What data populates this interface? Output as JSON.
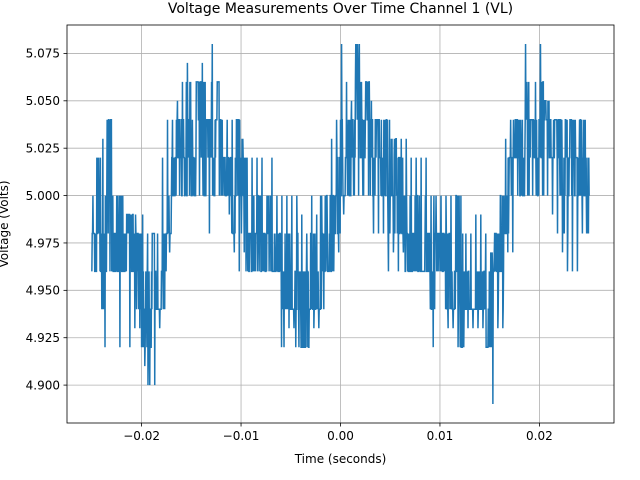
{
  "chart_data": {
    "type": "line",
    "title": "Voltage Measurements Over Time Channel 1 (VL)",
    "xlabel": "Time (seconds)",
    "ylabel": "Voltage (Volts)",
    "xlim": [
      -0.0275,
      0.0275
    ],
    "ylim": [
      4.88,
      5.09
    ],
    "grid": true,
    "x_ticks": [
      -0.02,
      -0.01,
      0.0,
      0.01,
      0.02
    ],
    "x_tick_labels": [
      "−0.02",
      "−0.01",
      "0.00",
      "0.01",
      "0.02"
    ],
    "y_ticks": [
      4.9,
      4.925,
      4.95,
      4.975,
      5.0,
      5.025,
      5.05,
      5.075
    ],
    "y_tick_labels": [
      "4.900",
      "4.925",
      "4.950",
      "4.975",
      "5.000",
      "5.025",
      "5.050",
      "5.075"
    ],
    "series": [
      {
        "color": "#1f77b4",
        "x": [
          -0.025,
          -0.0245,
          -0.024,
          -0.0235,
          -0.023,
          -0.0225,
          -0.022,
          -0.0215,
          -0.021,
          -0.0205,
          -0.02,
          -0.0195,
          -0.019,
          -0.0185,
          -0.018,
          -0.0175,
          -0.017,
          -0.0165,
          -0.016,
          -0.0155,
          -0.015,
          -0.0145,
          -0.014,
          -0.0135,
          -0.013,
          -0.0125,
          -0.012,
          -0.0115,
          -0.011,
          -0.0105,
          -0.01,
          -0.0095,
          -0.009,
          -0.0085,
          -0.008,
          -0.0075,
          -0.007,
          -0.0065,
          -0.006,
          -0.0055,
          -0.005,
          -0.0045,
          -0.004,
          -0.0035,
          -0.003,
          -0.0025,
          -0.002,
          -0.0015,
          -0.001,
          -0.0005,
          0.0,
          0.0005,
          0.001,
          0.0015,
          0.002,
          0.0025,
          0.003,
          0.0035,
          0.004,
          0.0045,
          0.005,
          0.0055,
          0.006,
          0.0065,
          0.007,
          0.0075,
          0.008,
          0.0085,
          0.009,
          0.0095,
          0.01,
          0.0105,
          0.011,
          0.0115,
          0.012,
          0.0125,
          0.013,
          0.0135,
          0.014,
          0.0145,
          0.015,
          0.0155,
          0.016,
          0.0165,
          0.017,
          0.0175,
          0.018,
          0.0185,
          0.019,
          0.0195,
          0.02,
          0.0205,
          0.021,
          0.0215,
          0.022,
          0.0225,
          0.023,
          0.0235,
          0.024,
          0.0245,
          0.025
        ],
        "y": [
          4.97,
          4.99,
          4.96,
          5.02,
          4.97,
          4.98,
          4.96,
          5.0,
          4.97,
          4.96,
          4.95,
          4.93,
          4.96,
          4.92,
          4.97,
          4.98,
          5.01,
          5.03,
          5.02,
          5.04,
          5.01,
          5.06,
          5.03,
          5.04,
          5.02,
          5.05,
          5.01,
          5.02,
          5.0,
          5.03,
          5.01,
          4.98,
          4.97,
          4.99,
          4.96,
          4.98,
          4.96,
          4.97,
          4.95,
          4.96,
          4.94,
          4.95,
          4.93,
          4.94,
          4.96,
          4.95,
          4.97,
          4.98,
          4.99,
          5.0,
          5.0,
          5.02,
          5.03,
          5.05,
          5.03,
          5.04,
          5.02,
          5.03,
          5.01,
          5.02,
          5.01,
          5.0,
          4.99,
          4.98,
          4.97,
          4.98,
          4.96,
          4.97,
          4.96,
          4.97,
          4.97,
          4.96,
          4.95,
          4.96,
          4.94,
          4.95,
          4.93,
          4.95,
          4.94,
          4.93,
          4.95,
          4.96,
          4.97,
          4.99,
          5.01,
          5.03,
          5.02,
          5.03,
          5.04,
          5.01,
          5.03,
          5.05,
          5.02,
          5.03,
          5.01,
          5.02,
          5.03,
          5.01,
          5.02,
          5.0,
          5.0
        ],
        "envelope": {
          "x": [
            -0.025,
            -0.0245,
            -0.024,
            -0.0235,
            -0.023,
            -0.0225,
            -0.022,
            -0.0215,
            -0.021,
            -0.0205,
            -0.02,
            -0.0195,
            -0.019,
            -0.0185,
            -0.018,
            -0.0175,
            -0.017,
            -0.0165,
            -0.016,
            -0.0155,
            -0.015,
            -0.0145,
            -0.014,
            -0.0135,
            -0.013,
            -0.0125,
            -0.012,
            -0.0115,
            -0.011,
            -0.0105,
            -0.01,
            -0.0095,
            -0.009,
            -0.0085,
            -0.008,
            -0.0075,
            -0.007,
            -0.0065,
            -0.006,
            -0.0055,
            -0.005,
            -0.0045,
            -0.004,
            -0.0035,
            -0.003,
            -0.0025,
            -0.002,
            -0.0015,
            -0.001,
            -0.0005,
            0.0,
            0.0005,
            0.001,
            0.0015,
            0.002,
            0.0025,
            0.003,
            0.0035,
            0.004,
            0.0045,
            0.005,
            0.0055,
            0.006,
            0.0065,
            0.007,
            0.0075,
            0.008,
            0.0085,
            0.009,
            0.0095,
            0.01,
            0.0105,
            0.011,
            0.0115,
            0.012,
            0.0125,
            0.013,
            0.0135,
            0.014,
            0.0145,
            0.015,
            0.0155,
            0.016,
            0.0165,
            0.017,
            0.0175,
            0.018,
            0.0185,
            0.019,
            0.0195,
            0.02,
            0.0205,
            0.021,
            0.0215,
            0.022,
            0.0225,
            0.023,
            0.0235,
            0.024,
            0.0245,
            0.025
          ],
          "min": [
            4.96,
            4.96,
            4.92,
            4.96,
            4.96,
            4.92,
            4.96,
            4.92,
            4.93,
            4.93,
            4.91,
            4.9,
            4.9,
            4.93,
            4.94,
            4.97,
            5.0,
            5.0,
            5.0,
            5.0,
            5.0,
            5.0,
            5.0,
            4.98,
            5.0,
            5.0,
            5.0,
            4.99,
            4.97,
            4.96,
            4.97,
            4.96,
            4.96,
            4.96,
            4.96,
            4.96,
            4.96,
            4.96,
            4.92,
            4.93,
            4.93,
            4.92,
            4.92,
            4.92,
            4.93,
            4.93,
            4.94,
            4.96,
            4.96,
            4.97,
            4.99,
            5.0,
            5.0,
            5.0,
            5.0,
            5.0,
            4.98,
            4.98,
            4.98,
            4.96,
            4.97,
            4.96,
            4.97,
            4.96,
            4.96,
            4.96,
            4.96,
            4.96,
            4.92,
            4.96,
            4.96,
            4.93,
            4.93,
            4.92,
            4.92,
            4.93,
            4.93,
            4.93,
            4.93,
            4.92,
            4.89,
            4.93,
            4.93,
            4.97,
            4.97,
            5.0,
            5.0,
            5.0,
            5.0,
            5.0,
            5.0,
            5.0,
            4.99,
            4.98,
            4.97,
            4.96,
            4.96,
            4.96,
            4.98,
            4.98,
            4.98
          ],
          "max": [
            5.0,
            5.02,
            5.03,
            5.04,
            5.0,
            5.0,
            5.0,
            4.99,
            4.99,
            4.98,
            4.99,
            4.98,
            4.98,
            4.98,
            5.02,
            5.04,
            5.04,
            5.05,
            5.06,
            5.07,
            5.04,
            5.06,
            5.07,
            5.04,
            5.08,
            5.06,
            5.04,
            5.04,
            5.04,
            5.04,
            5.03,
            5.02,
            5.02,
            5.02,
            5.02,
            5.0,
            5.02,
            5.0,
            5.0,
            5.0,
            5.0,
            5.0,
            4.99,
            4.98,
            5.0,
            4.99,
            5.0,
            5.0,
            5.03,
            5.04,
            5.08,
            5.06,
            5.05,
            5.08,
            5.06,
            5.06,
            5.05,
            5.04,
            5.04,
            5.04,
            5.03,
            5.03,
            5.03,
            5.03,
            5.02,
            5.02,
            5.02,
            5.02,
            5.0,
            5.0,
            5.0,
            5.0,
            5.0,
            5.0,
            5.0,
            4.98,
            4.98,
            4.99,
            4.99,
            4.98,
            4.97,
            4.98,
            5.0,
            5.03,
            5.04,
            5.04,
            5.04,
            5.08,
            5.04,
            5.06,
            5.08,
            5.05,
            5.04,
            5.04,
            5.04,
            5.04,
            5.04,
            5.04,
            5.04,
            5.04,
            5.0
          ]
        }
      }
    ]
  }
}
